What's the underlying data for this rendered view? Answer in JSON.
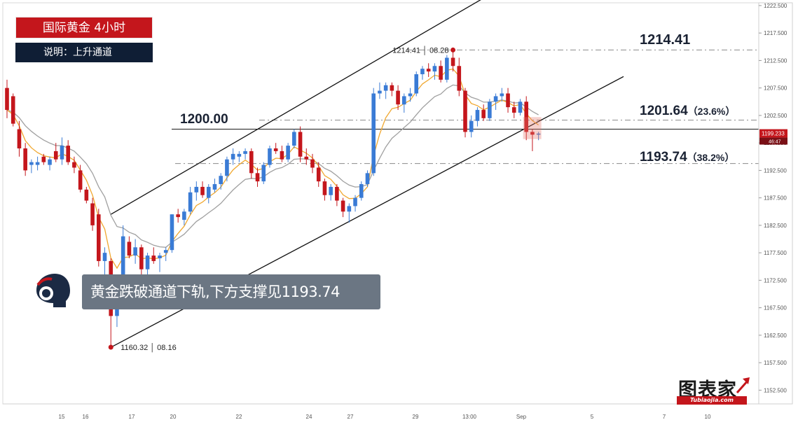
{
  "header": {
    "title": "国际黄金  4小时",
    "note": "说明：上升通道"
  },
  "comment": "黄金跌破通道下轨,下方支撑见1193.74",
  "logo": {
    "main": "图表家",
    "sub": "Tubiaojia.com"
  },
  "levels": {
    "resistance_1200": "1200.00",
    "level_high": "1214.41",
    "fib_236_value": "1201.64",
    "fib_236_pct": "（23.6%）",
    "fib_382_value": "1193.74",
    "fib_382_pct": "（38.2%）"
  },
  "colors": {
    "bull": "#3a7bd5",
    "bear": "#c4161c",
    "ma_fast": "#f0a830",
    "ma_slow": "#a0a0a0",
    "title_bg": "#c4161c",
    "note_bg": "#0f1e35"
  },
  "chart_data": {
    "type": "candlestick",
    "title": "国际黄金  4小时",
    "timeframe": "4小时",
    "ylim": [
      1150,
      1223
    ],
    "y_ticks": [
      "1222.500",
      "1217.500",
      "1212.500",
      "1207.500",
      "1202.500",
      "1197.500",
      "1192.500",
      "1187.500",
      "1182.500",
      "1177.500",
      "1172.500",
      "1167.500",
      "1162.500",
      "1157.500",
      "1152.500"
    ],
    "x_ticks": [
      "15",
      "16",
      "17",
      "20",
      "22",
      "24",
      "27",
      "29",
      "13:00",
      "Sep",
      "5",
      "7",
      "10"
    ],
    "current_price": "1199.233",
    "countdown": "46:47",
    "annotations": {
      "high": {
        "price": "1214.41",
        "date": "08.28"
      },
      "low": {
        "price": "1160.32",
        "date": "08.16"
      }
    },
    "horizontal_levels": [
      {
        "label": "1214.41",
        "value": 1214.41,
        "style": "dash-dot"
      },
      {
        "label": "1201.64",
        "value": 1201.64,
        "pct": "23.6%",
        "style": "dash-dot"
      },
      {
        "label": "1200.00",
        "value": 1200.0,
        "style": "solid"
      },
      {
        "label": "1193.74",
        "value": 1193.74,
        "pct": "38.2%",
        "style": "dash-dot"
      }
    ],
    "channel": {
      "upper": {
        "from": {
          "bar": 17,
          "price": 1184.5
        },
        "to": {
          "bar": 79,
          "price": 1224.5
        }
      },
      "lower": {
        "from": {
          "bar": 17,
          "price": 1160.3
        },
        "to": {
          "bar": 111,
          "price": 1215.5
        }
      }
    },
    "candles": [
      {
        "o": 1207.5,
        "h": 1209.0,
        "l": 1202.0,
        "c": 1203.5
      },
      {
        "o": 1206.0,
        "h": 1206.5,
        "l": 1200.5,
        "c": 1201.0
      },
      {
        "o": 1200.0,
        "h": 1201.5,
        "l": 1195.0,
        "c": 1196.5
      },
      {
        "o": 1196.5,
        "h": 1197.5,
        "l": 1191.5,
        "c": 1192.5
      },
      {
        "o": 1193.5,
        "h": 1194.5,
        "l": 1192.0,
        "c": 1194.0
      },
      {
        "o": 1193.5,
        "h": 1195.0,
        "l": 1192.5,
        "c": 1194.0
      },
      {
        "o": 1195.0,
        "h": 1195.5,
        "l": 1193.5,
        "c": 1194.0
      },
      {
        "o": 1193.5,
        "h": 1195.0,
        "l": 1192.5,
        "c": 1194.5
      },
      {
        "o": 1196.0,
        "h": 1197.5,
        "l": 1194.0,
        "c": 1194.5
      },
      {
        "o": 1194.5,
        "h": 1198.5,
        "l": 1193.5,
        "c": 1197.0
      },
      {
        "o": 1197.0,
        "h": 1198.0,
        "l": 1193.5,
        "c": 1194.0
      },
      {
        "o": 1194.0,
        "h": 1195.0,
        "l": 1192.0,
        "c": 1193.0
      },
      {
        "o": 1192.5,
        "h": 1193.5,
        "l": 1188.5,
        "c": 1189.0
      },
      {
        "o": 1189.0,
        "h": 1189.5,
        "l": 1186.5,
        "c": 1187.0
      },
      {
        "o": 1186.5,
        "h": 1187.5,
        "l": 1181.5,
        "c": 1182.5
      },
      {
        "o": 1184.5,
        "h": 1185.5,
        "l": 1175.0,
        "c": 1176.0
      },
      {
        "o": 1176.0,
        "h": 1178.5,
        "l": 1173.5,
        "c": 1177.5
      },
      {
        "o": 1176.0,
        "h": 1176.5,
        "l": 1160.3,
        "c": 1166.0
      },
      {
        "o": 1166.0,
        "h": 1172.0,
        "l": 1164.0,
        "c": 1171.0
      },
      {
        "o": 1171.0,
        "h": 1182.5,
        "l": 1170.0,
        "c": 1180.5
      },
      {
        "o": 1179.5,
        "h": 1180.5,
        "l": 1176.5,
        "c": 1177.0
      },
      {
        "o": 1177.0,
        "h": 1180.0,
        "l": 1175.5,
        "c": 1178.5
      },
      {
        "o": 1178.5,
        "h": 1179.0,
        "l": 1173.5,
        "c": 1174.5
      },
      {
        "o": 1174.5,
        "h": 1177.5,
        "l": 1173.5,
        "c": 1177.0
      },
      {
        "o": 1177.0,
        "h": 1178.5,
        "l": 1175.5,
        "c": 1176.0
      },
      {
        "o": 1176.5,
        "h": 1177.5,
        "l": 1174.0,
        "c": 1177.0
      },
      {
        "o": 1177.5,
        "h": 1178.5,
        "l": 1176.0,
        "c": 1178.0
      },
      {
        "o": 1178.0,
        "h": 1184.5,
        "l": 1177.5,
        "c": 1184.5
      },
      {
        "o": 1184.5,
        "h": 1185.5,
        "l": 1183.0,
        "c": 1184.0
      },
      {
        "o": 1183.5,
        "h": 1185.5,
        "l": 1182.5,
        "c": 1185.0
      },
      {
        "o": 1185.0,
        "h": 1189.5,
        "l": 1184.5,
        "c": 1188.5
      },
      {
        "o": 1188.5,
        "h": 1190.5,
        "l": 1187.0,
        "c": 1189.5
      },
      {
        "o": 1189.5,
        "h": 1190.5,
        "l": 1187.5,
        "c": 1188.0
      },
      {
        "o": 1187.5,
        "h": 1190.0,
        "l": 1186.5,
        "c": 1189.5
      },
      {
        "o": 1189.0,
        "h": 1191.0,
        "l": 1188.5,
        "c": 1190.0
      },
      {
        "o": 1190.0,
        "h": 1192.0,
        "l": 1189.0,
        "c": 1191.5
      },
      {
        "o": 1191.5,
        "h": 1195.0,
        "l": 1190.5,
        "c": 1194.5
      },
      {
        "o": 1194.5,
        "h": 1196.5,
        "l": 1193.5,
        "c": 1195.5
      },
      {
        "o": 1195.0,
        "h": 1196.0,
        "l": 1194.0,
        "c": 1195.5
      },
      {
        "o": 1195.5,
        "h": 1196.5,
        "l": 1194.5,
        "c": 1196.0
      },
      {
        "o": 1196.0,
        "h": 1196.5,
        "l": 1191.0,
        "c": 1192.0
      },
      {
        "o": 1192.0,
        "h": 1193.0,
        "l": 1189.5,
        "c": 1190.5
      },
      {
        "o": 1190.5,
        "h": 1194.0,
        "l": 1190.0,
        "c": 1193.5
      },
      {
        "o": 1193.5,
        "h": 1197.0,
        "l": 1193.0,
        "c": 1196.5
      },
      {
        "o": 1196.5,
        "h": 1197.5,
        "l": 1195.5,
        "c": 1196.0
      },
      {
        "o": 1196.0,
        "h": 1197.0,
        "l": 1194.0,
        "c": 1194.5
      },
      {
        "o": 1194.5,
        "h": 1197.5,
        "l": 1194.0,
        "c": 1197.0
      },
      {
        "o": 1197.0,
        "h": 1200.0,
        "l": 1196.5,
        "c": 1199.5
      },
      {
        "o": 1199.5,
        "h": 1200.5,
        "l": 1194.0,
        "c": 1195.0
      },
      {
        "o": 1195.0,
        "h": 1196.5,
        "l": 1193.5,
        "c": 1194.5
      },
      {
        "o": 1194.5,
        "h": 1195.5,
        "l": 1192.0,
        "c": 1193.0
      },
      {
        "o": 1193.0,
        "h": 1194.0,
        "l": 1189.5,
        "c": 1190.5
      },
      {
        "o": 1190.5,
        "h": 1191.0,
        "l": 1187.0,
        "c": 1188.0
      },
      {
        "o": 1188.0,
        "h": 1190.0,
        "l": 1187.0,
        "c": 1189.5
      },
      {
        "o": 1189.5,
        "h": 1190.0,
        "l": 1186.0,
        "c": 1187.0
      },
      {
        "o": 1187.0,
        "h": 1187.5,
        "l": 1184.0,
        "c": 1185.0
      },
      {
        "o": 1185.0,
        "h": 1186.5,
        "l": 1183.0,
        "c": 1186.0
      },
      {
        "o": 1186.0,
        "h": 1188.0,
        "l": 1185.0,
        "c": 1187.5
      },
      {
        "o": 1187.5,
        "h": 1190.5,
        "l": 1187.0,
        "c": 1190.0
      },
      {
        "o": 1190.0,
        "h": 1192.5,
        "l": 1189.5,
        "c": 1192.0
      },
      {
        "o": 1192.0,
        "h": 1207.5,
        "l": 1191.5,
        "c": 1206.5
      },
      {
        "o": 1206.5,
        "h": 1208.5,
        "l": 1205.5,
        "c": 1207.0
      },
      {
        "o": 1207.0,
        "h": 1208.5,
        "l": 1205.5,
        "c": 1208.0
      },
      {
        "o": 1208.0,
        "h": 1208.5,
        "l": 1206.0,
        "c": 1207.0
      },
      {
        "o": 1207.0,
        "h": 1208.0,
        "l": 1203.5,
        "c": 1204.5
      },
      {
        "o": 1204.5,
        "h": 1206.5,
        "l": 1203.0,
        "c": 1206.0
      },
      {
        "o": 1206.0,
        "h": 1207.5,
        "l": 1205.0,
        "c": 1206.5
      },
      {
        "o": 1206.5,
        "h": 1210.5,
        "l": 1206.0,
        "c": 1210.0
      },
      {
        "o": 1210.0,
        "h": 1211.5,
        "l": 1209.0,
        "c": 1211.0
      },
      {
        "o": 1211.0,
        "h": 1212.0,
        "l": 1209.5,
        "c": 1210.5
      },
      {
        "o": 1210.5,
        "h": 1212.0,
        "l": 1209.0,
        "c": 1211.5
      },
      {
        "o": 1211.5,
        "h": 1212.5,
        "l": 1208.5,
        "c": 1209.0
      },
      {
        "o": 1209.0,
        "h": 1213.5,
        "l": 1208.5,
        "c": 1213.0
      },
      {
        "o": 1213.0,
        "h": 1214.4,
        "l": 1210.5,
        "c": 1211.5
      },
      {
        "o": 1211.5,
        "h": 1213.0,
        "l": 1206.0,
        "c": 1207.0
      },
      {
        "o": 1207.0,
        "h": 1207.5,
        "l": 1198.5,
        "c": 1199.5
      },
      {
        "o": 1199.5,
        "h": 1202.5,
        "l": 1198.5,
        "c": 1201.5
      },
      {
        "o": 1201.5,
        "h": 1204.0,
        "l": 1200.5,
        "c": 1203.5
      },
      {
        "o": 1203.5,
        "h": 1204.5,
        "l": 1201.5,
        "c": 1202.0
      },
      {
        "o": 1202.0,
        "h": 1205.5,
        "l": 1201.5,
        "c": 1205.0
      },
      {
        "o": 1205.0,
        "h": 1206.5,
        "l": 1203.5,
        "c": 1206.0
      },
      {
        "o": 1206.0,
        "h": 1207.5,
        "l": 1205.0,
        "c": 1206.5
      },
      {
        "o": 1206.5,
        "h": 1207.5,
        "l": 1203.0,
        "c": 1204.0
      },
      {
        "o": 1204.0,
        "h": 1205.0,
        "l": 1202.0,
        "c": 1203.0
      },
      {
        "o": 1203.0,
        "h": 1205.5,
        "l": 1202.5,
        "c": 1205.0
      },
      {
        "o": 1205.0,
        "h": 1206.0,
        "l": 1198.0,
        "c": 1199.5
      },
      {
        "o": 1199.5,
        "h": 1200.0,
        "l": 1196.0,
        "c": 1199.0
      },
      {
        "o": 1199.0,
        "h": 1199.5,
        "l": 1198.0,
        "c": 1199.2
      }
    ]
  }
}
